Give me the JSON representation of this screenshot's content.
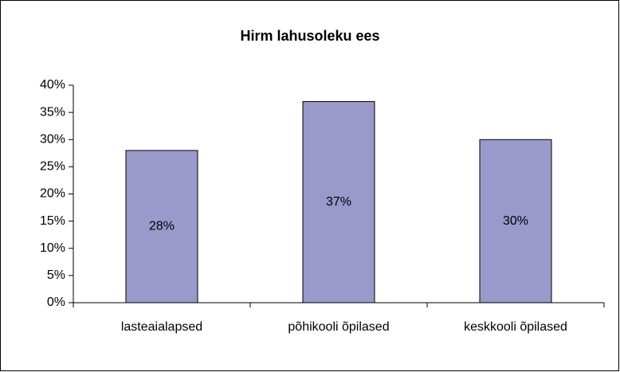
{
  "chart_data": {
    "type": "bar",
    "title": "Hirm lahusoleku ees",
    "categories": [
      "lasteaialapsed",
      "põhikooli õpilased",
      "keskkooli õpilased"
    ],
    "values": [
      28,
      37,
      30
    ],
    "value_labels": [
      "28%",
      "37%",
      "30%"
    ],
    "color": "#9999cc",
    "ylim": [
      0,
      40
    ],
    "yticks": [
      {
        "value": 0,
        "label": "0%"
      },
      {
        "value": 5,
        "label": "5%"
      },
      {
        "value": 10,
        "label": "10%"
      },
      {
        "value": 15,
        "label": "15%"
      },
      {
        "value": 20,
        "label": "20%"
      },
      {
        "value": 25,
        "label": "25%"
      },
      {
        "value": 30,
        "label": "30%"
      },
      {
        "value": 35,
        "label": "35%"
      },
      {
        "value": 40,
        "label": "40%"
      }
    ],
    "grid": false
  }
}
